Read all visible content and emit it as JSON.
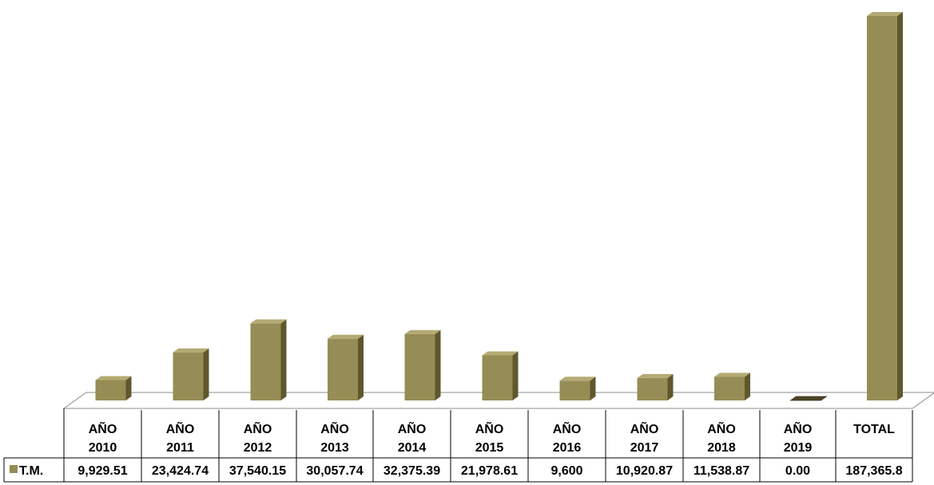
{
  "chart_data": {
    "type": "bar",
    "style": "3d-column-with-data-table",
    "categories": [
      [
        "AÑO",
        "2010"
      ],
      [
        "AÑO",
        "2011"
      ],
      [
        "AÑO",
        "2012"
      ],
      [
        "AÑO",
        "2013"
      ],
      [
        "AÑO",
        "2014"
      ],
      [
        "AÑO",
        "2015"
      ],
      [
        "AÑO",
        "2016"
      ],
      [
        "AÑO",
        "2017"
      ],
      [
        "AÑO",
        "2018"
      ],
      [
        "AÑO",
        "2019"
      ],
      [
        "TOTAL"
      ]
    ],
    "series": [
      {
        "name": "T.M.",
        "values": [
          9929.51,
          23424.74,
          37540.15,
          30057.74,
          32375.39,
          21978.61,
          9600,
          10920.87,
          11538.87,
          0.0,
          187365.8
        ],
        "labels": [
          "9,929.51",
          "23,424.74",
          "37,540.15",
          "30,057.74",
          "32,375.39",
          "21,978.61",
          "9,600",
          "10,920.87",
          "11,538.87",
          "0.00",
          "187,365.8"
        ]
      }
    ],
    "colors": {
      "front": "#968c55",
      "side": "#5f582e",
      "top": "#b4aa73",
      "empty": "#4a4525",
      "legend_key": "#968c55"
    },
    "axis": {
      "ylim": [
        0,
        187365.8
      ],
      "gridlines": false,
      "visible_axis": false
    },
    "legend": "in-data-table"
  }
}
